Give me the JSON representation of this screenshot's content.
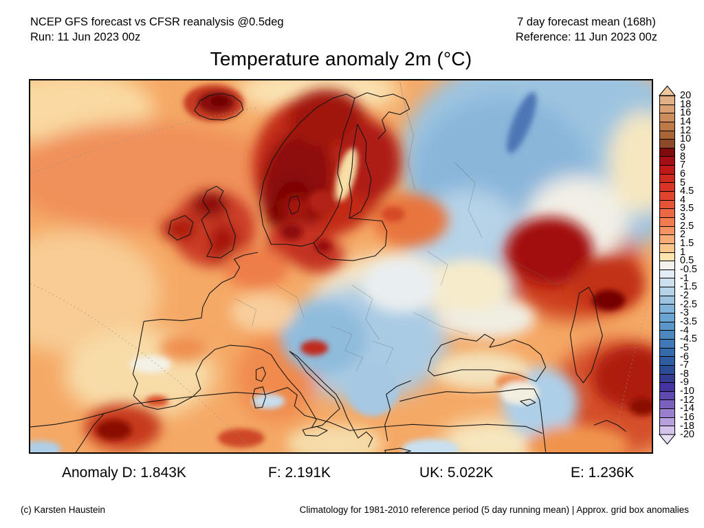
{
  "header": {
    "left_line1": "NCEP GFS forecast vs CFSR reanalysis @0.5deg",
    "left_line2": "Run: 11 Jun 2023 00z",
    "right_line1": "7 day forecast mean (168h)",
    "right_line2": "Reference: 11 Jun 2023 00z"
  },
  "title": "Temperature anomaly 2m (°C)",
  "colorbar": {
    "unit": "°C",
    "labels": [
      "20",
      "18",
      "16",
      "14",
      "12",
      "10",
      "9",
      "8",
      "7",
      "6",
      "5",
      "4.5",
      "4",
      "3.5",
      "3",
      "2.5",
      "2",
      "1.5",
      "1",
      "0.5",
      "-0.5",
      "-1",
      "-1.5",
      "-2",
      "-2.5",
      "-3",
      "-3.5",
      "-4",
      "-4.5",
      "-5",
      "-6",
      "-7",
      "-8",
      "-9",
      "-10",
      "-12",
      "-14",
      "-16",
      "-18",
      "-20"
    ],
    "segment_colors": [
      "#E2B087",
      "#D8A073",
      "#CA8D5B",
      "#BB7A48",
      "#A96536",
      "#8C4A2B",
      "#7E0B0D",
      "#A30F15",
      "#C01A18",
      "#CE2A20",
      "#D93527",
      "#E0432E",
      "#E55439",
      "#EB6844",
      "#F07C50",
      "#F49264",
      "#F8AD78",
      "#FBC68E",
      "#FDE3AE",
      "#F4F2EC",
      "#E2EDF5",
      "#CCE0F0",
      "#B4D3E9",
      "#9BC4E1",
      "#82B4D9",
      "#6AA4D0",
      "#5A96C7",
      "#4C88BE",
      "#4079B5",
      "#356BAB",
      "#2F5CA2",
      "#2B4C97",
      "#343B90",
      "#46339F",
      "#5F48AE",
      "#7B60BE",
      "#9980CE",
      "#B7A0DE",
      "#D5C3EC"
    ],
    "arrow_top_color": "#EFC69E",
    "arrow_bottom_color": "#E9E0F6"
  },
  "stats": {
    "items": [
      {
        "id": "D",
        "text": "Anomaly D: 1.843K"
      },
      {
        "id": "F",
        "text": "F: 2.191K"
      },
      {
        "id": "UK",
        "text": "UK: 5.022K"
      },
      {
        "id": "E",
        "text": "E: 1.236K"
      }
    ]
  },
  "footer": {
    "left": "(c) Karsten Haustein",
    "right": "Climatology for 1981-2010 reference period (5 day running mean) | Approx. grid box anomalies"
  },
  "chart_data": {
    "type": "heatmap",
    "title": "Temperature anomaly 2m (°C)",
    "model_line": "NCEP GFS forecast vs CFSR reanalysis @0.5deg",
    "run": "11 Jun 2023 00z",
    "forecast_window": "7 day forecast mean (168h)",
    "reference": "11 Jun 2023 00z",
    "region": "Europe / North Atlantic / North Africa / Middle East",
    "colorbar_ticks": [
      20,
      18,
      16,
      14,
      12,
      10,
      9,
      8,
      7,
      6,
      5,
      4.5,
      4,
      3.5,
      3,
      2.5,
      2,
      1.5,
      1,
      0.5,
      -0.5,
      -1,
      -1.5,
      -2,
      -2.5,
      -3,
      -3.5,
      -4,
      -4.5,
      -5,
      -6,
      -7,
      -8,
      -9,
      -10,
      -12,
      -14,
      -16,
      -18,
      -20
    ],
    "legend_position": "right",
    "region_mean_anomalies": [
      {
        "region": "D",
        "value": "1.843K"
      },
      {
        "region": "F",
        "value": "2.191K"
      },
      {
        "region": "UK",
        "value": "5.022K"
      },
      {
        "region": "E",
        "value": "1.236K"
      }
    ],
    "notes": "Climatology for 1981-2010 reference period (5 day running mean) | Approx. grid box anomalies",
    "qualitative_pattern": "Strong warm anomaly (+6 to +10) over Iceland, UK and Scandinavia; warm Atlantic and North Africa; cold anomaly (-1 to -5) over NW Russia/Baltic-to-Black-Sea corridor and Balkans; strong warm anomaly near Volga/Caspian and Iran"
  }
}
